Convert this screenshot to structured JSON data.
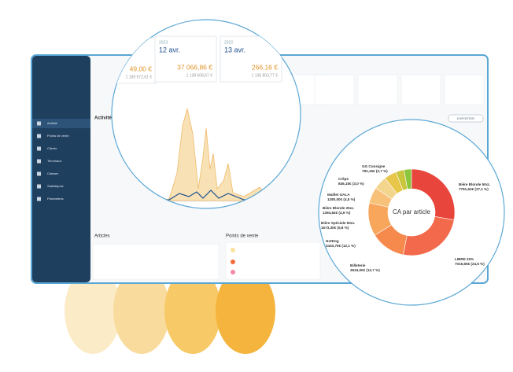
{
  "sidebar": {
    "items": [
      "Activité",
      "Points de vente",
      "Clients",
      "Terminaux",
      "Caisses",
      "Statistiques",
      "Paramètres"
    ]
  },
  "dashboard": {
    "activity_title": "Activité",
    "articles_title": "Articles",
    "pos_title": "Points de vente",
    "export": "EXPORTER"
  },
  "zoom_cards": [
    {
      "amount": "49,00 €",
      "total": "1 189 572,61 €"
    },
    {
      "year": "2023",
      "date": "12 avr.",
      "amount": "37 066,86 €",
      "total": "1 138 608,67 €"
    },
    {
      "year": "2022",
      "date": "13 avr.",
      "amount": "266,16 €",
      "total": "1 136 803,77 €"
    }
  ],
  "chart_data": {
    "type": "pie",
    "title": "CA par article",
    "categories": [
      "Bière Blonde 50cL",
      "LIBRE 20%",
      "Billeterie",
      "HotDog",
      "Bière Spéciale 50cL",
      "Bière Blonde 25cL",
      "Maillet GALA",
      "Crêpe",
      "GG Consigne"
    ],
    "values": [
      27.1,
      24.6,
      12.7,
      12.1,
      5.8,
      4.9,
      4.5,
      3.0,
      2.7
    ],
    "value_labels": [
      "7791,63€ (27,1 %)",
      "7016,65€ (24,6 %)",
      "3634,00€ (12,7 %)",
      "3443,75€ (12,1 %)",
      "1673,30€ (5,8 %)",
      "1394,84€ (4,9 %)",
      "1280,00€ (4,5 %)",
      "846,15€ (3,0 %)",
      "782,15€ (2,7 %)"
    ],
    "colors": [
      "#e8453c",
      "#f26a4b",
      "#f58a4c",
      "#f7a65c",
      "#f8c17a",
      "#f3d58e",
      "#e7c64a",
      "#c9c53c",
      "#8cc63f"
    ]
  }
}
